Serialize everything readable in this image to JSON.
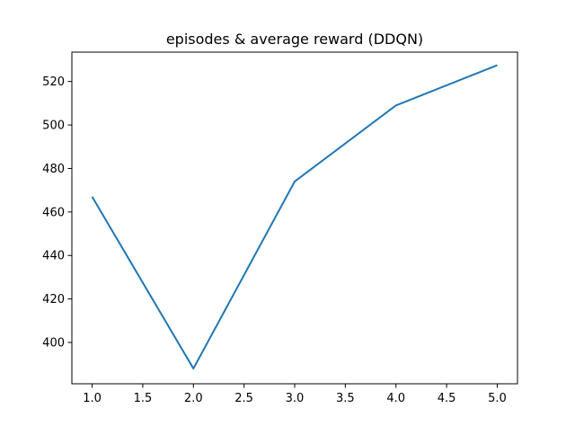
{
  "chart_data": {
    "type": "line",
    "title": "episodes & average reward (DDQN)",
    "xlabel": "",
    "ylabel": "",
    "x": [
      1,
      2,
      3,
      4,
      5
    ],
    "series": [
      {
        "values": [
          467,
          388,
          474,
          509,
          527.5
        ],
        "color": "#1f77b4"
      }
    ],
    "xlim": [
      0.8,
      5.2
    ],
    "ylim": [
      381,
      533.5
    ],
    "xticks": [
      1.0,
      1.5,
      2.0,
      2.5,
      3.0,
      3.5,
      4.0,
      4.5,
      5.0
    ],
    "yticks": [
      400,
      420,
      440,
      460,
      480,
      500,
      520
    ],
    "grid": false,
    "legend": "none"
  }
}
